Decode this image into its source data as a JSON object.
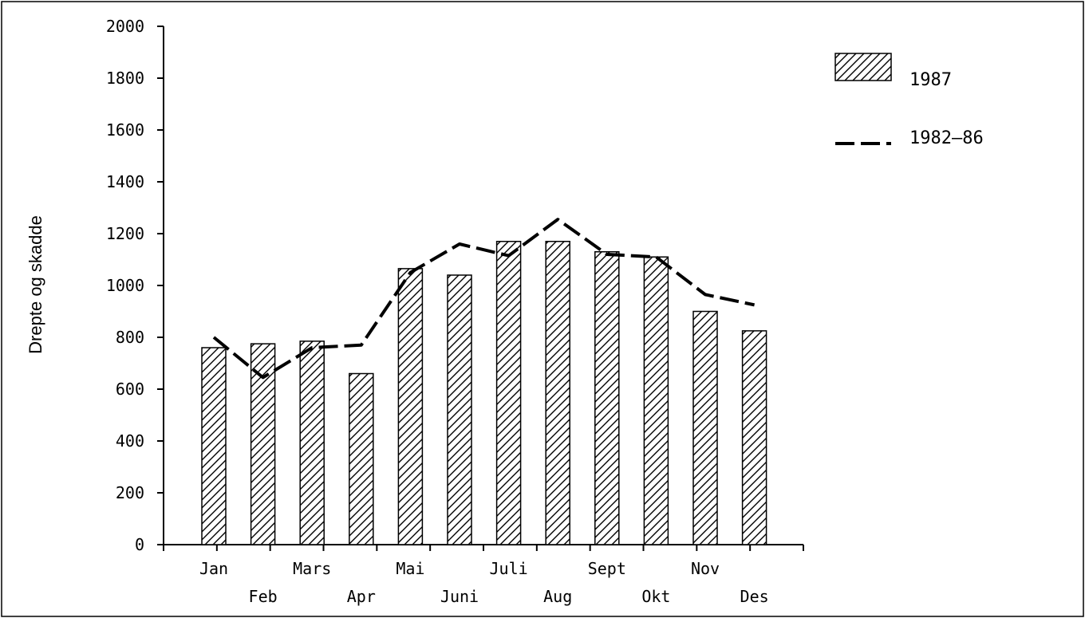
{
  "chart_data": {
    "type": "bar",
    "ylabel": "Drepte og skadde",
    "ylim": [
      0,
      2000
    ],
    "yticks": [
      0,
      200,
      400,
      600,
      800,
      1000,
      1200,
      1400,
      1600,
      1800,
      2000
    ],
    "categories": [
      "Jan",
      "Feb",
      "Mars",
      "Apr",
      "Mai",
      "Juni",
      "Juli",
      "Aug",
      "Sept",
      "Okt",
      "Nov",
      "Des"
    ],
    "series": [
      {
        "name": "1987",
        "type": "bar",
        "pattern": "diagonal-hatch",
        "values": [
          760,
          775,
          785,
          660,
          1065,
          1040,
          1170,
          1170,
          1130,
          1110,
          900,
          825
        ]
      },
      {
        "name": "1982–86",
        "type": "line",
        "style": "dashed",
        "values": [
          800,
          645,
          760,
          770,
          1050,
          1160,
          1115,
          1255,
          1120,
          1110,
          965,
          925
        ]
      }
    ],
    "legend": {
      "position": "right-top"
    },
    "grid": false,
    "colors": {
      "ink": "#000000",
      "background": "#ffffff"
    }
  }
}
